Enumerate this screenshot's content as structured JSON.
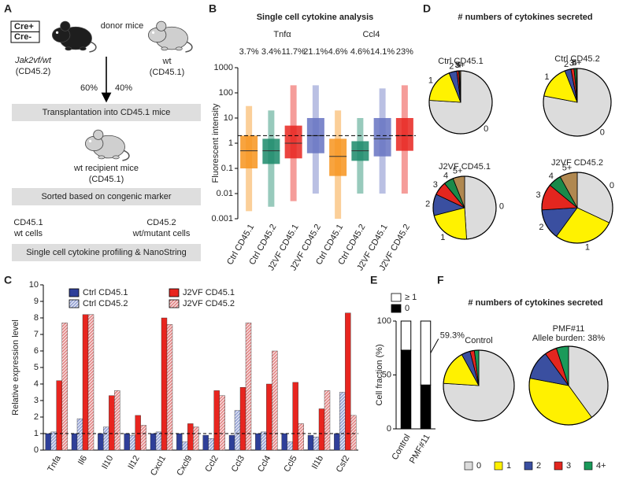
{
  "diagram": {
    "panel": "A",
    "donor_cre": [
      "Cre+",
      "Cre-"
    ],
    "donor_label": "donor mice",
    "donor_genotype": "Jak2vf/wt",
    "donor_marker": "(CD45.2)",
    "wt_label": "wt",
    "wt_marker": "(CD45.1)",
    "ratio_left": "60%",
    "ratio_right": "40%",
    "step1": "Transplantation into CD45.1 mice",
    "recipient_label": "wt recipient mice",
    "recipient_marker": "(CD45.1)",
    "step2": "Sorted based on congenic marker",
    "left_pop": [
      "CD45.1",
      "wt cells"
    ],
    "right_pop": [
      "CD45.2",
      "wt/mutant cells"
    ],
    "step3": "Single cell cytokine profiling & NanoString"
  },
  "chart_data": [
    {
      "panel": "B",
      "type": "strip",
      "title": "Single cell cytokine analysis",
      "y_label": "Fluorescent intensity",
      "log_scale": true,
      "group_labels": [
        "Tnfα",
        "Ccl4"
      ],
      "categories": [
        "Ctrl CD45.1",
        "Ctrl CD45.2",
        "J2VF CD45.1",
        "J2VF CD45.2",
        "Ctrl CD45.1",
        "Ctrl CD45.2",
        "J2VF CD45.1",
        "J2VF CD45.2"
      ],
      "colors": [
        "#f7941d",
        "#1a8a6a",
        "#e8251f",
        "#6673c2",
        "#f7941d",
        "#1a8a6a",
        "#6673c2",
        "#e8251f"
      ],
      "min": [
        0.002,
        0.003,
        0.005,
        0.01,
        0.001,
        0.01,
        0.01,
        0.01
      ],
      "q1": [
        0.1,
        0.15,
        0.25,
        0.4,
        0.05,
        0.2,
        0.3,
        0.5
      ],
      "median": [
        0.5,
        0.5,
        1,
        2,
        0.3,
        0.5,
        1.5,
        2
      ],
      "q3": [
        2,
        1.5,
        5,
        10,
        1.5,
        1.2,
        10,
        10
      ],
      "max": [
        30,
        20,
        200,
        200,
        20,
        10,
        150,
        200
      ],
      "percent_positive": {
        "values": [
          3.7,
          3.4,
          11.7,
          21.1,
          4.6,
          4.6,
          14.1,
          23
        ],
        "value_labels": [
          "3.7%",
          "3.4%",
          "11.7%",
          "21.1%",
          "4.6%",
          "4.6%",
          "14.1%",
          "23%"
        ]
      },
      "threshold": 2,
      "ylim": [
        0.001,
        1000
      ],
      "yticks": [
        0.001,
        0.01,
        0.1,
        1,
        10,
        100,
        1000
      ]
    },
    {
      "panel": "C",
      "type": "bar",
      "y_label": "Relative expression level",
      "categories": [
        "Tnfa",
        "Il6",
        "Il10",
        "Il12",
        "Cxcl1",
        "Cxcl9",
        "Ccl2",
        "Ccl3",
        "Ccl4",
        "Ccl5",
        "Il1b",
        "Csf2"
      ],
      "series": [
        {
          "name": "Ctrl CD45.1",
          "color": "#2e3f99",
          "hatched": false,
          "values": [
            1,
            1,
            1,
            1,
            1,
            1,
            0.9,
            0.9,
            1,
            1,
            0.9,
            1
          ]
        },
        {
          "name": "Ctrl CD45.2",
          "color": "#9aa6d6",
          "hatched": true,
          "values": [
            1.1,
            1.9,
            1.4,
            0.9,
            1.1,
            0.5,
            0.7,
            2.4,
            1.1,
            0.5,
            0.8,
            3.5
          ]
        },
        {
          "name": "J2VF CD45.1",
          "color": "#e8251f",
          "hatched": false,
          "values": [
            4.2,
            8.2,
            3.3,
            2.1,
            8.0,
            1.6,
            3.6,
            3.8,
            4.0,
            4.1,
            2.5,
            8.3
          ]
        },
        {
          "name": "J2VF CD45.2",
          "color": "#e48a8a",
          "hatched": true,
          "values": [
            7.7,
            8.2,
            3.6,
            1.5,
            7.6,
            1.4,
            3.3,
            7.7,
            6.0,
            1.6,
            3.6,
            2.1
          ]
        }
      ],
      "reference_line": 1,
      "ylim": [
        0,
        10
      ],
      "yticks": [
        0,
        1,
        2,
        3,
        4,
        5,
        6,
        7,
        8,
        9,
        10
      ]
    },
    {
      "panel": "E",
      "type": "bar",
      "stacked": true,
      "y_label": "Cell fraction (%)",
      "categories": [
        "Control",
        "PMF#11"
      ],
      "series": [
        {
          "name": "≥ 1",
          "color": "#ffffff",
          "values": [
            27,
            59.3
          ]
        },
        {
          "name": "0",
          "color": "#000000",
          "values": [
            73,
            40.7
          ]
        }
      ],
      "annotation": {
        "value": 59.3,
        "label": "59.3%"
      },
      "ylim": [
        0,
        100
      ],
      "yticks": [
        0,
        50,
        100
      ]
    },
    {
      "panel": "D",
      "type": "pie",
      "title": "# numbers of cytokines secreted",
      "slice_labels": true,
      "categories": [
        "0",
        "1",
        "2",
        "3",
        "4",
        "5+"
      ],
      "colors": [
        "#dcdcdc",
        "#fff200",
        "#3a4fa0",
        "#e3261f",
        "#1a8a4a",
        "#b08850"
      ],
      "pies": [
        {
          "name": "Ctrl CD45.1",
          "values": [
            76,
            18,
            4,
            1,
            0.5,
            0.5
          ]
        },
        {
          "name": "Ctrl CD45.2",
          "values": [
            78,
            16,
            3,
            1.5,
            1,
            0.5
          ]
        },
        {
          "name": "J2VF CD45.1",
          "values": [
            49,
            22,
            11,
            7,
            5,
            6
          ]
        },
        {
          "name": "J2VF CD45.2",
          "values": [
            32,
            28,
            14,
            12,
            6,
            8
          ]
        }
      ]
    },
    {
      "panel": "F",
      "type": "pie",
      "title": "# numbers of cytokines secreted",
      "legend": true,
      "categories": [
        "0",
        "1",
        "2",
        "3",
        "4+"
      ],
      "colors": [
        "#dcdcdc",
        "#fff100",
        "#3a4fa0",
        "#e3261f",
        "#1a9a5a"
      ],
      "pies": [
        {
          "name": "Control",
          "values": [
            76,
            16,
            4,
            2,
            2
          ]
        },
        {
          "name": "PMF#11",
          "subtitle": "Allele burden: 38%",
          "values": [
            40,
            38,
            12,
            5,
            5
          ]
        }
      ]
    }
  ]
}
